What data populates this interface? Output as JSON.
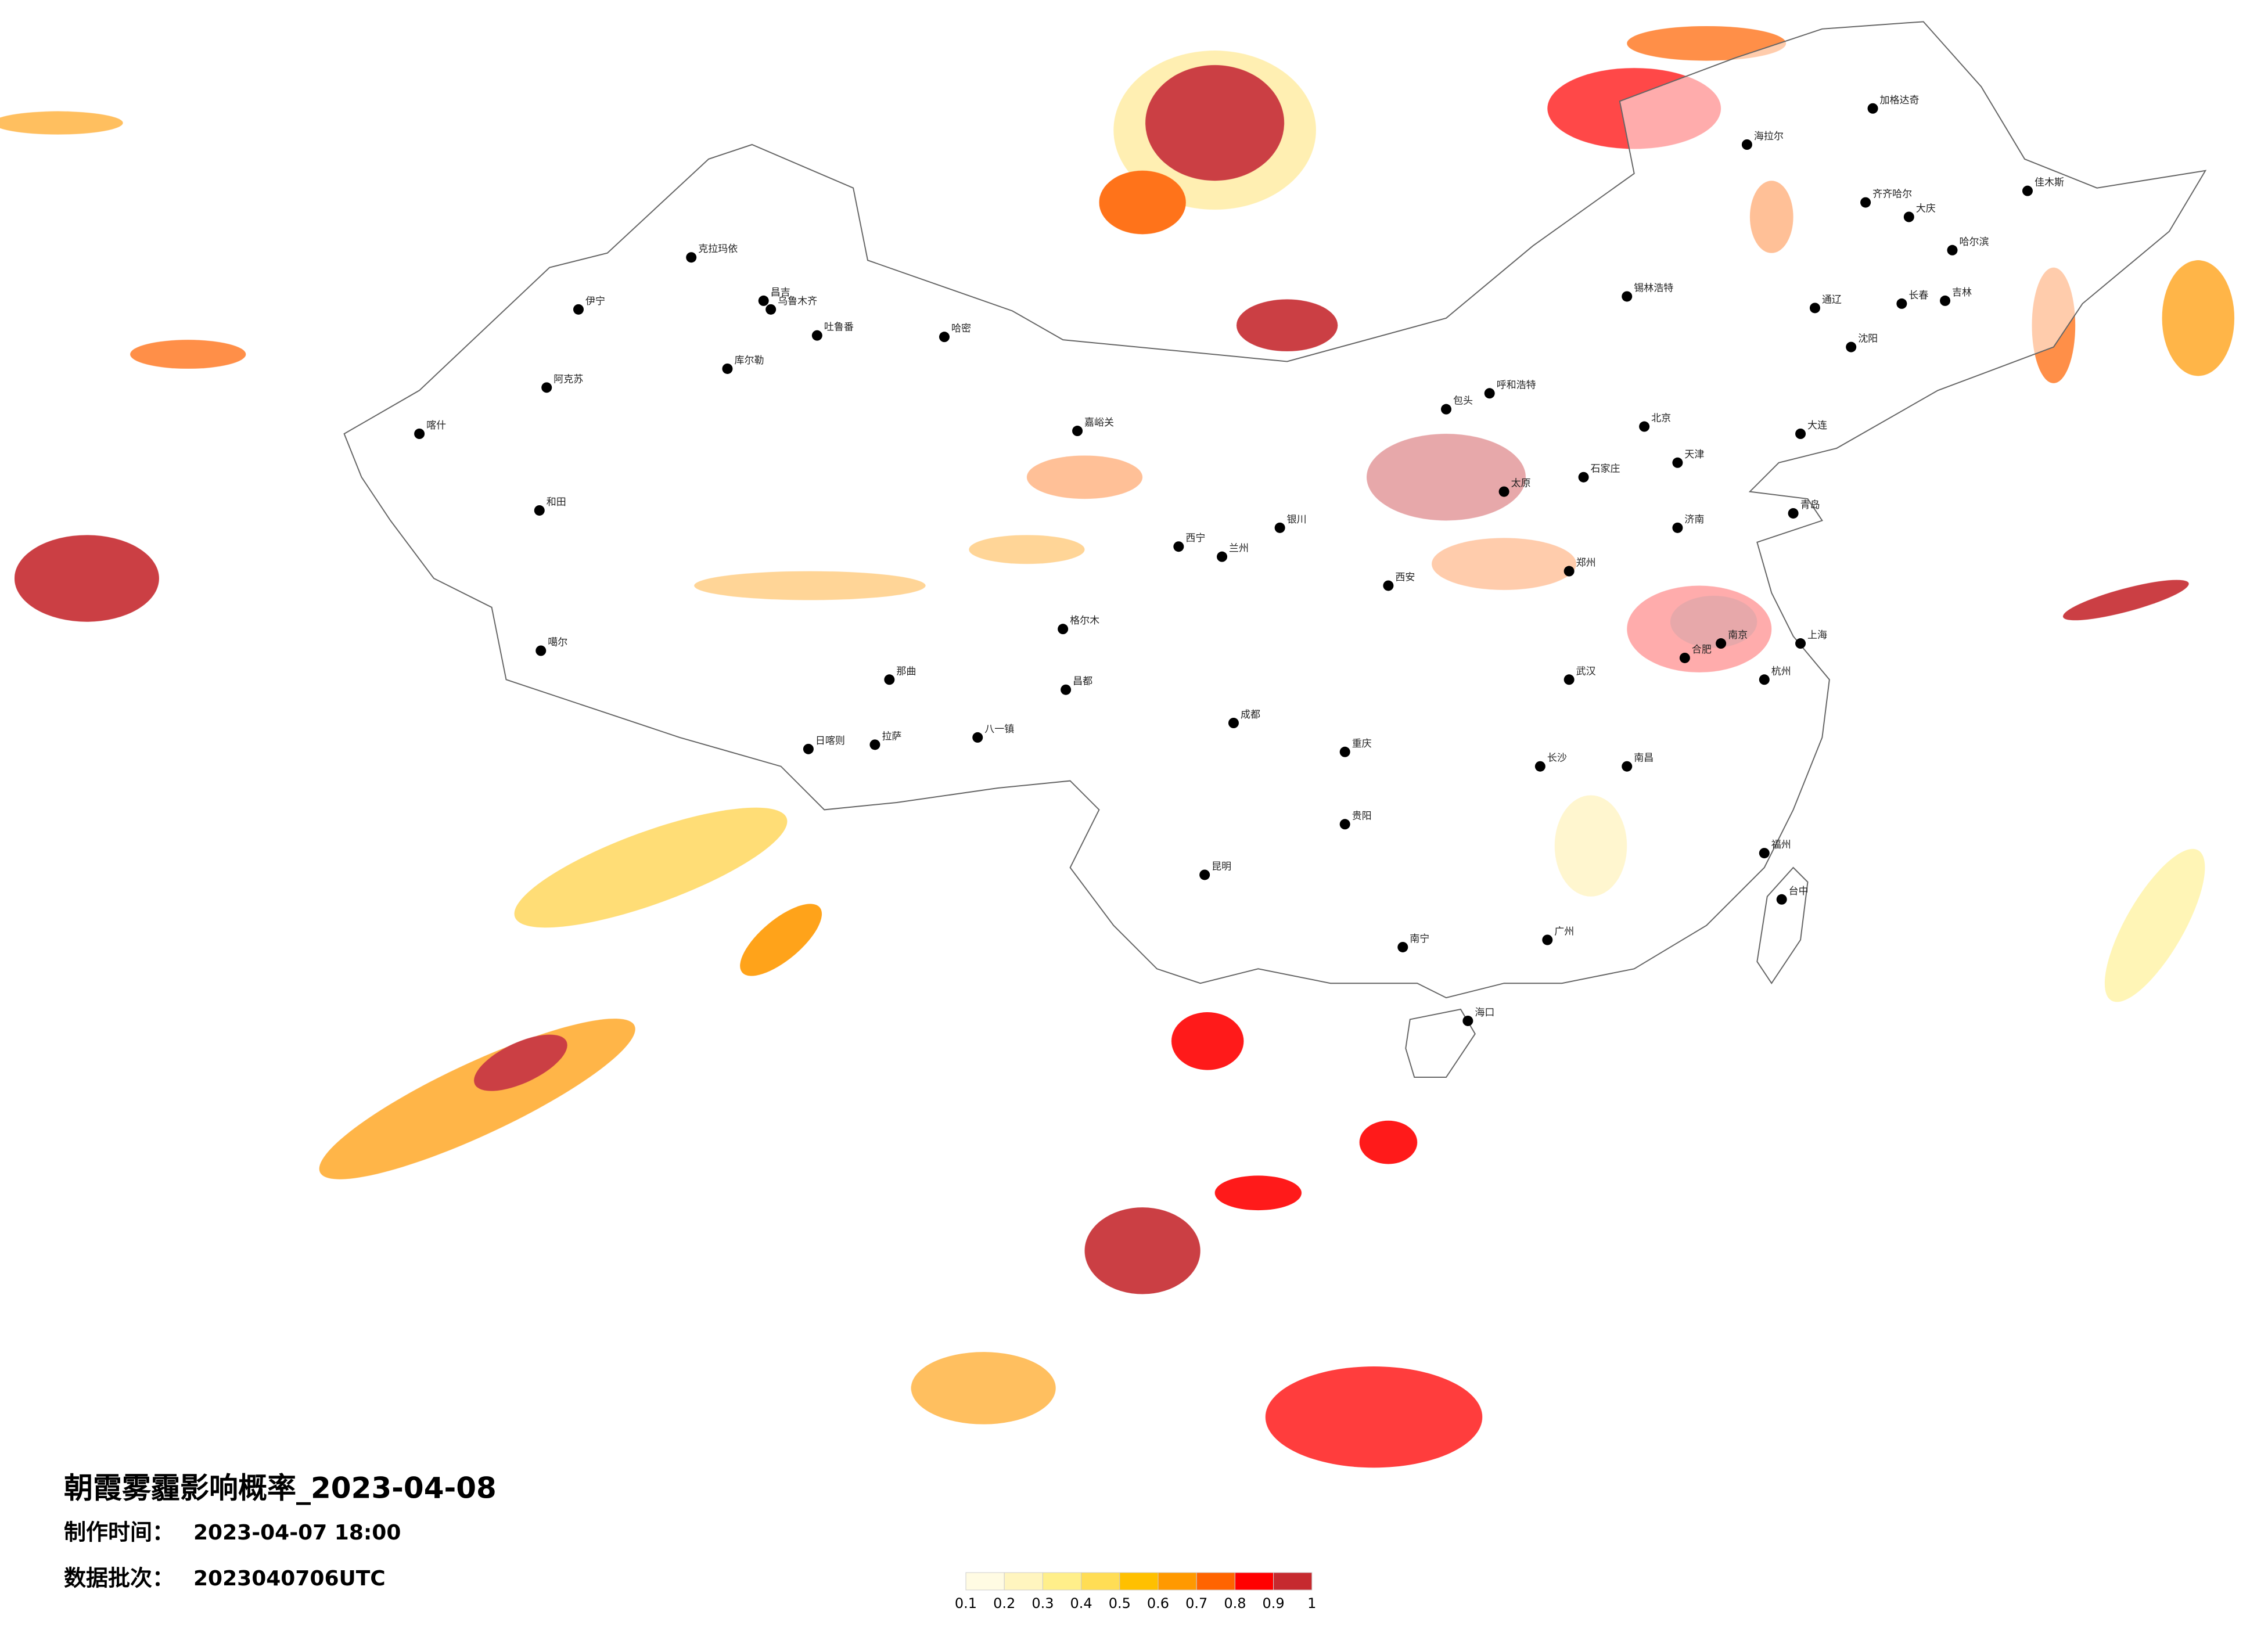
{
  "header": {
    "title": "朝霞雾霾影响概率_2023-04-08",
    "time_label": "制作时间：",
    "time_value": "2023-04-07 18:00",
    "batch_label": "数据批次：",
    "batch_value": "2023040706UTC"
  },
  "colorbar": {
    "colors": [
      "#fffbe3",
      "#fff5bf",
      "#ffef8a",
      "#ffdd55",
      "#ffc000",
      "#ff9900",
      "#ff6400",
      "#ff0000",
      "#c62a2f"
    ],
    "ticks": [
      0.1,
      0.2,
      0.3,
      0.4,
      0.5,
      0.6,
      0.7,
      0.8,
      0.9,
      1
    ]
  },
  "cities": [
    "克拉玛依",
    "伊宁",
    "昌吉",
    "乌鲁木齐",
    "吐鲁番",
    "哈密",
    "库尔勒",
    "阿克苏",
    "喀什",
    "和田",
    "噶尔",
    "日喀则",
    "拉萨",
    "八一镇",
    "那曲",
    "昌都",
    "嘉峪关",
    "西宁",
    "格尔木",
    "兰州",
    "银川",
    "呼和浩特",
    "包头",
    "海拉尔",
    "加格达奇",
    "齐齐哈尔",
    "大庆",
    "哈尔滨",
    "佳木斯",
    "锡林浩特",
    "通辽",
    "长春",
    "吉林",
    "沈阳",
    "大连",
    "北京",
    "天津",
    "石家庄",
    "太原",
    "济南",
    "青岛",
    "郑州",
    "西安",
    "成都",
    "重庆",
    "贵阳",
    "昆明",
    "南宁",
    "海口",
    "广州",
    "福州",
    "台中",
    "杭州",
    "上海",
    "南京",
    "合肥",
    "武汉",
    "长沙",
    "南昌"
  ]
}
